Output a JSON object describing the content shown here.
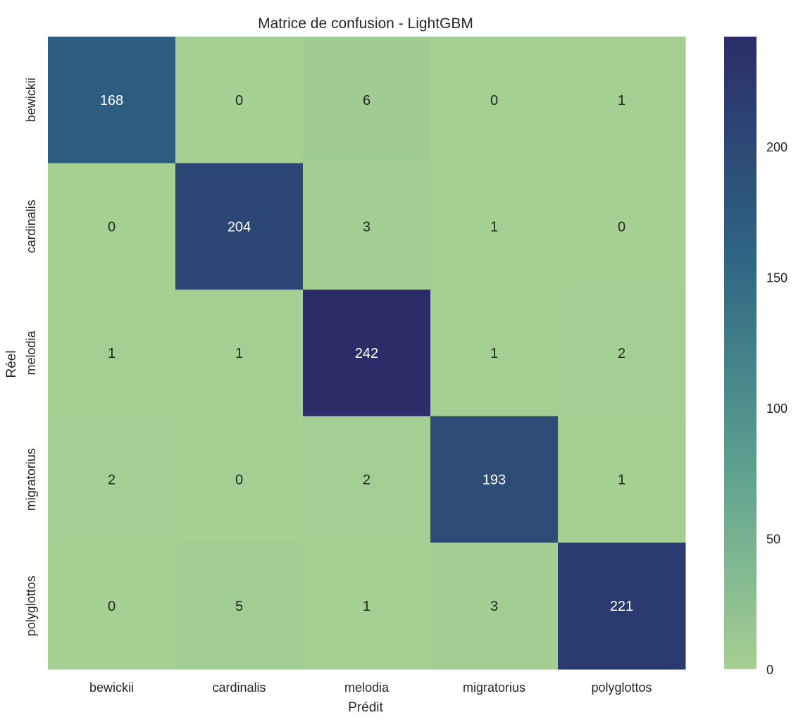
{
  "chart_data": {
    "type": "heatmap",
    "title": "Matrice de confusion - LightGBM",
    "xlabel": "Prédit",
    "ylabel": "Réel",
    "x_categories": [
      "bewickii",
      "cardinalis",
      "melodia",
      "migratorius",
      "polyglottos"
    ],
    "y_categories": [
      "bewickii",
      "cardinalis",
      "melodia",
      "migratorius",
      "polyglottos"
    ],
    "values": [
      [
        168,
        0,
        6,
        0,
        1
      ],
      [
        0,
        204,
        3,
        1,
        0
      ],
      [
        1,
        1,
        242,
        1,
        2
      ],
      [
        2,
        0,
        2,
        193,
        1
      ],
      [
        0,
        5,
        1,
        3,
        221
      ]
    ],
    "vmin": 0,
    "vmax": 242,
    "colormap": "crest",
    "colorbar_ticks": [
      0,
      50,
      100,
      150,
      200
    ],
    "colorbar_tick_labels": [
      "0",
      "50",
      "100",
      "150",
      "200"
    ],
    "grid": false,
    "colors": [
      "#a6cf93",
      "#5a9e8f",
      "#2d6283",
      "#2c2d68"
    ]
  }
}
